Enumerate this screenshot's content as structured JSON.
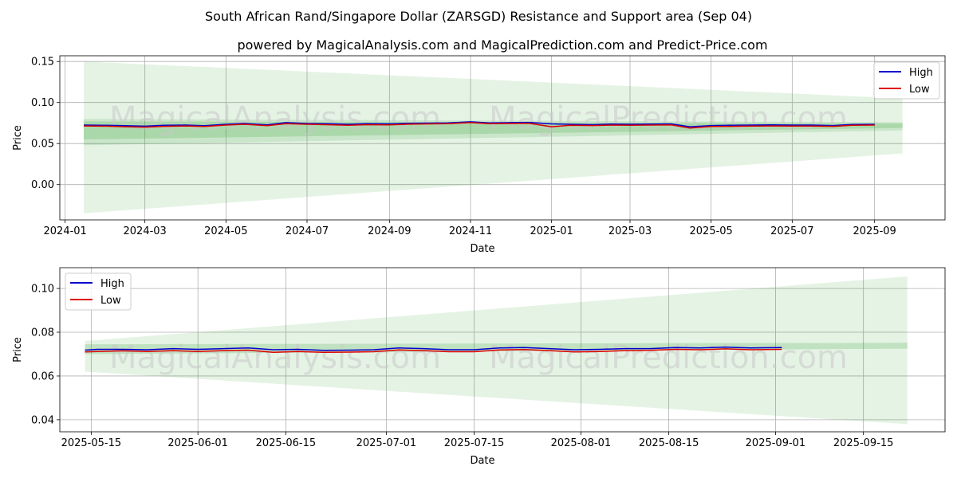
{
  "title": "South African Rand/Singapore Dollar (ZARSGD) Resistance and Support area (Sep 04)",
  "subtitle": "powered by MagicalAnalysis.com and MagicalPrediction.com and Predict-Price.com",
  "watermarks": [
    "MagicalAnalysis.com",
    "MagicalPrediction.com"
  ],
  "colors": {
    "high": "#0000cc",
    "low": "#dd0000",
    "band": "#2ca02c",
    "grid": "#b0b0b0"
  },
  "chart_data": [
    {
      "type": "line",
      "xlabel": "Date",
      "ylabel": "Price",
      "xlim": [
        "2023-12-28",
        "2025-10-24"
      ],
      "ylim": [
        -0.043,
        0.157
      ],
      "x_ticks": [
        "2024-01",
        "2024-03",
        "2024-05",
        "2024-07",
        "2024-09",
        "2024-11",
        "2025-01",
        "2025-03",
        "2025-05",
        "2025-07",
        "2025-09"
      ],
      "y_ticks": [
        "0.15",
        "0.10",
        "0.05",
        "0.00"
      ],
      "legend": {
        "position": "top-right",
        "entries": [
          "High",
          "Low"
        ]
      },
      "grid": true,
      "series": [
        {
          "name": "High",
          "x": [
            "2024-01-15",
            "2024-02-01",
            "2024-02-15",
            "2024-03-01",
            "2024-03-15",
            "2024-04-01",
            "2024-04-15",
            "2024-05-01",
            "2024-05-15",
            "2024-06-01",
            "2024-06-15",
            "2024-07-01",
            "2024-07-15",
            "2024-08-01",
            "2024-08-15",
            "2024-09-01",
            "2024-09-15",
            "2024-10-01",
            "2024-10-15",
            "2024-11-01",
            "2024-11-15",
            "2024-12-01",
            "2024-12-15",
            "2025-01-01",
            "2025-01-15",
            "2025-02-01",
            "2025-02-15",
            "2025-03-01",
            "2025-03-15",
            "2025-04-01",
            "2025-04-15",
            "2025-05-01",
            "2025-05-15",
            "2025-06-01",
            "2025-06-15",
            "2025-07-01",
            "2025-07-15",
            "2025-08-01",
            "2025-08-15",
            "2025-09-01"
          ],
          "values": [
            0.0725,
            0.0722,
            0.0718,
            0.0712,
            0.0722,
            0.0725,
            0.0718,
            0.0735,
            0.0745,
            0.0728,
            0.0755,
            0.0745,
            0.0742,
            0.0735,
            0.0742,
            0.074,
            0.0748,
            0.075,
            0.0752,
            0.0765,
            0.0752,
            0.0755,
            0.0758,
            0.074,
            0.0735,
            0.073,
            0.0738,
            0.0735,
            0.0738,
            0.074,
            0.0705,
            0.072,
            0.0722,
            0.0725,
            0.0728,
            0.0725,
            0.0725,
            0.072,
            0.0732,
            0.0735
          ]
        },
        {
          "name": "Low",
          "x": [
            "2024-01-15",
            "2024-02-01",
            "2024-02-15",
            "2024-03-01",
            "2024-03-15",
            "2024-04-01",
            "2024-04-15",
            "2024-05-01",
            "2024-05-15",
            "2024-06-01",
            "2024-06-15",
            "2024-07-01",
            "2024-07-15",
            "2024-08-01",
            "2024-08-15",
            "2024-09-01",
            "2024-09-15",
            "2024-10-01",
            "2024-10-15",
            "2024-11-01",
            "2024-11-15",
            "2024-12-01",
            "2024-12-15",
            "2025-01-01",
            "2025-01-15",
            "2025-02-01",
            "2025-02-15",
            "2025-03-01",
            "2025-03-15",
            "2025-04-01",
            "2025-04-15",
            "2025-05-01",
            "2025-05-15",
            "2025-06-01",
            "2025-06-15",
            "2025-07-01",
            "2025-07-15",
            "2025-08-01",
            "2025-08-15",
            "2025-09-01"
          ],
          "values": [
            0.0715,
            0.0712,
            0.0705,
            0.07,
            0.071,
            0.0715,
            0.0708,
            0.0725,
            0.0735,
            0.0718,
            0.0742,
            0.0735,
            0.073,
            0.0722,
            0.073,
            0.0728,
            0.0736,
            0.074,
            0.0742,
            0.0755,
            0.0742,
            0.0745,
            0.0748,
            0.0705,
            0.0722,
            0.072,
            0.0725,
            0.0722,
            0.0725,
            0.0728,
            0.0688,
            0.0708,
            0.071,
            0.0713,
            0.0715,
            0.0713,
            0.0714,
            0.071,
            0.0722,
            0.0725
          ]
        }
      ],
      "bands": [
        {
          "x": [
            "2024-01-15",
            "2025-09-22"
          ],
          "upper": [
            0.15,
            0.105
          ],
          "lower": [
            -0.035,
            0.038
          ],
          "opacity": 0.12
        },
        {
          "x": [
            "2024-01-15",
            "2025-09-22"
          ],
          "upper": [
            0.08,
            0.076
          ],
          "lower": [
            0.048,
            0.066
          ],
          "opacity": 0.15
        },
        {
          "x": [
            "2024-01-15",
            "2025-09-22"
          ],
          "upper": [
            0.077,
            0.0745
          ],
          "lower": [
            0.055,
            0.069
          ],
          "opacity": 0.2
        }
      ]
    },
    {
      "type": "line",
      "xlabel": "Date",
      "ylabel": "Price",
      "xlim": [
        "2025-05-10",
        "2025-09-28"
      ],
      "ylim": [
        0.0345,
        0.1095
      ],
      "x_ticks": [
        "2025-05-15",
        "2025-06-01",
        "2025-06-15",
        "2025-07-01",
        "2025-07-15",
        "2025-08-01",
        "2025-08-15",
        "2025-09-01",
        "2025-09-15"
      ],
      "y_ticks": [
        "0.10",
        "0.08",
        "0.06",
        "0.04"
      ],
      "legend": {
        "position": "top-left",
        "entries": [
          "High",
          "Low"
        ]
      },
      "grid": true,
      "series": [
        {
          "name": "High",
          "x": [
            "2025-05-14",
            "2025-05-16",
            "2025-05-20",
            "2025-05-24",
            "2025-05-28",
            "2025-06-01",
            "2025-06-05",
            "2025-06-09",
            "2025-06-13",
            "2025-06-17",
            "2025-06-21",
            "2025-06-25",
            "2025-06-29",
            "2025-07-03",
            "2025-07-07",
            "2025-07-11",
            "2025-07-15",
            "2025-07-19",
            "2025-07-23",
            "2025-07-27",
            "2025-07-31",
            "2025-08-04",
            "2025-08-08",
            "2025-08-12",
            "2025-08-16",
            "2025-08-20",
            "2025-08-24",
            "2025-08-28",
            "2025-09-02"
          ],
          "values": [
            0.0718,
            0.0722,
            0.0722,
            0.072,
            0.0725,
            0.0722,
            0.0725,
            0.0728,
            0.072,
            0.0722,
            0.0717,
            0.0718,
            0.072,
            0.0728,
            0.0725,
            0.072,
            0.072,
            0.0728,
            0.073,
            0.0725,
            0.072,
            0.0722,
            0.0725,
            0.0725,
            0.073,
            0.0728,
            0.0732,
            0.0728,
            0.073
          ]
        },
        {
          "name": "Low",
          "x": [
            "2025-05-14",
            "2025-05-16",
            "2025-05-20",
            "2025-05-24",
            "2025-05-28",
            "2025-06-01",
            "2025-06-05",
            "2025-06-09",
            "2025-06-13",
            "2025-06-17",
            "2025-06-21",
            "2025-06-25",
            "2025-06-29",
            "2025-07-03",
            "2025-07-07",
            "2025-07-11",
            "2025-07-15",
            "2025-07-19",
            "2025-07-23",
            "2025-07-27",
            "2025-07-31",
            "2025-08-04",
            "2025-08-08",
            "2025-08-12",
            "2025-08-16",
            "2025-08-20",
            "2025-08-24",
            "2025-08-28",
            "2025-09-02"
          ],
          "values": [
            0.071,
            0.0712,
            0.0715,
            0.0712,
            0.0716,
            0.0712,
            0.0716,
            0.0718,
            0.0708,
            0.0712,
            0.0708,
            0.0709,
            0.0711,
            0.0719,
            0.0716,
            0.0711,
            0.0711,
            0.0719,
            0.0721,
            0.0716,
            0.071,
            0.0712,
            0.0716,
            0.0717,
            0.0722,
            0.072,
            0.0724,
            0.072,
            0.0722
          ]
        }
      ],
      "bands": [
        {
          "x": [
            "2025-05-14",
            "2025-09-22"
          ],
          "upper": [
            0.076,
            0.1055
          ],
          "lower": [
            0.062,
            0.038
          ],
          "opacity": 0.12
        },
        {
          "x": [
            "2025-05-14",
            "2025-09-22"
          ],
          "upper": [
            0.0745,
            0.0752
          ],
          "lower": [
            0.07,
            0.0725
          ],
          "opacity": 0.2
        }
      ]
    }
  ]
}
